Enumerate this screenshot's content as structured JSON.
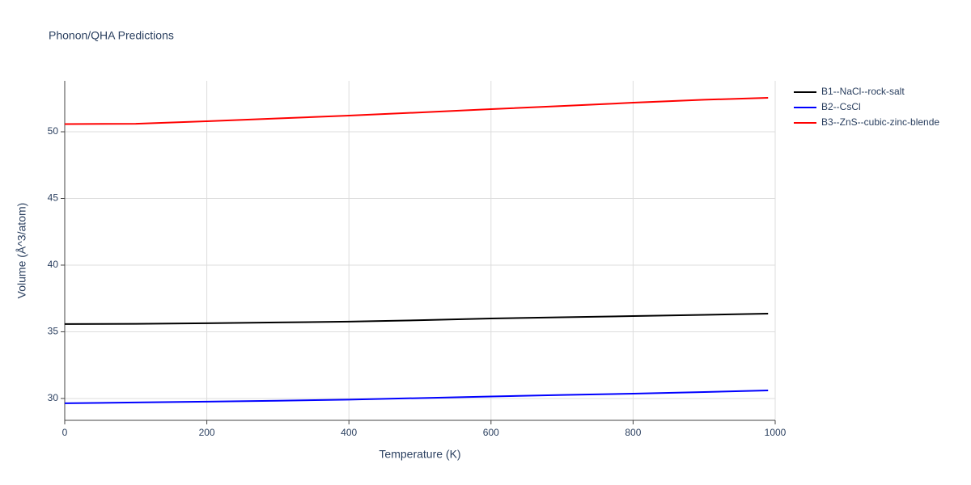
{
  "chart_data": {
    "type": "line",
    "title": "Phonon/QHA Predictions",
    "x_label": "Temperature (K)",
    "y_label": "Volume (Å^3/atom)",
    "x": [
      0,
      100,
      200,
      300,
      400,
      500,
      600,
      700,
      800,
      900,
      990
    ],
    "series": [
      {
        "name": "B1--NaCl--rock-salt",
        "color": "#000000",
        "values": [
          35.58,
          35.6,
          35.64,
          35.7,
          35.76,
          35.87,
          36.0,
          36.09,
          36.18,
          36.27,
          36.36
        ]
      },
      {
        "name": "B2--CsCl",
        "color": "#0000ff",
        "values": [
          29.64,
          29.7,
          29.76,
          29.83,
          29.91,
          30.03,
          30.15,
          30.26,
          30.36,
          30.48,
          30.6
        ]
      },
      {
        "name": "B3--ZnS--cubic-zinc-blende",
        "color": "#ff0000",
        "values": [
          50.58,
          50.6,
          50.79,
          51.0,
          51.21,
          51.45,
          51.7,
          51.93,
          52.18,
          52.4,
          52.55
        ]
      }
    ],
    "xlim": [
      0,
      1000
    ],
    "xticks": [
      0,
      200,
      400,
      600,
      800,
      1000
    ],
    "ylim": [
      28.36,
      53.82
    ],
    "yticks": [
      30,
      35,
      40,
      45,
      50
    ],
    "grid": true,
    "legend": "right"
  }
}
